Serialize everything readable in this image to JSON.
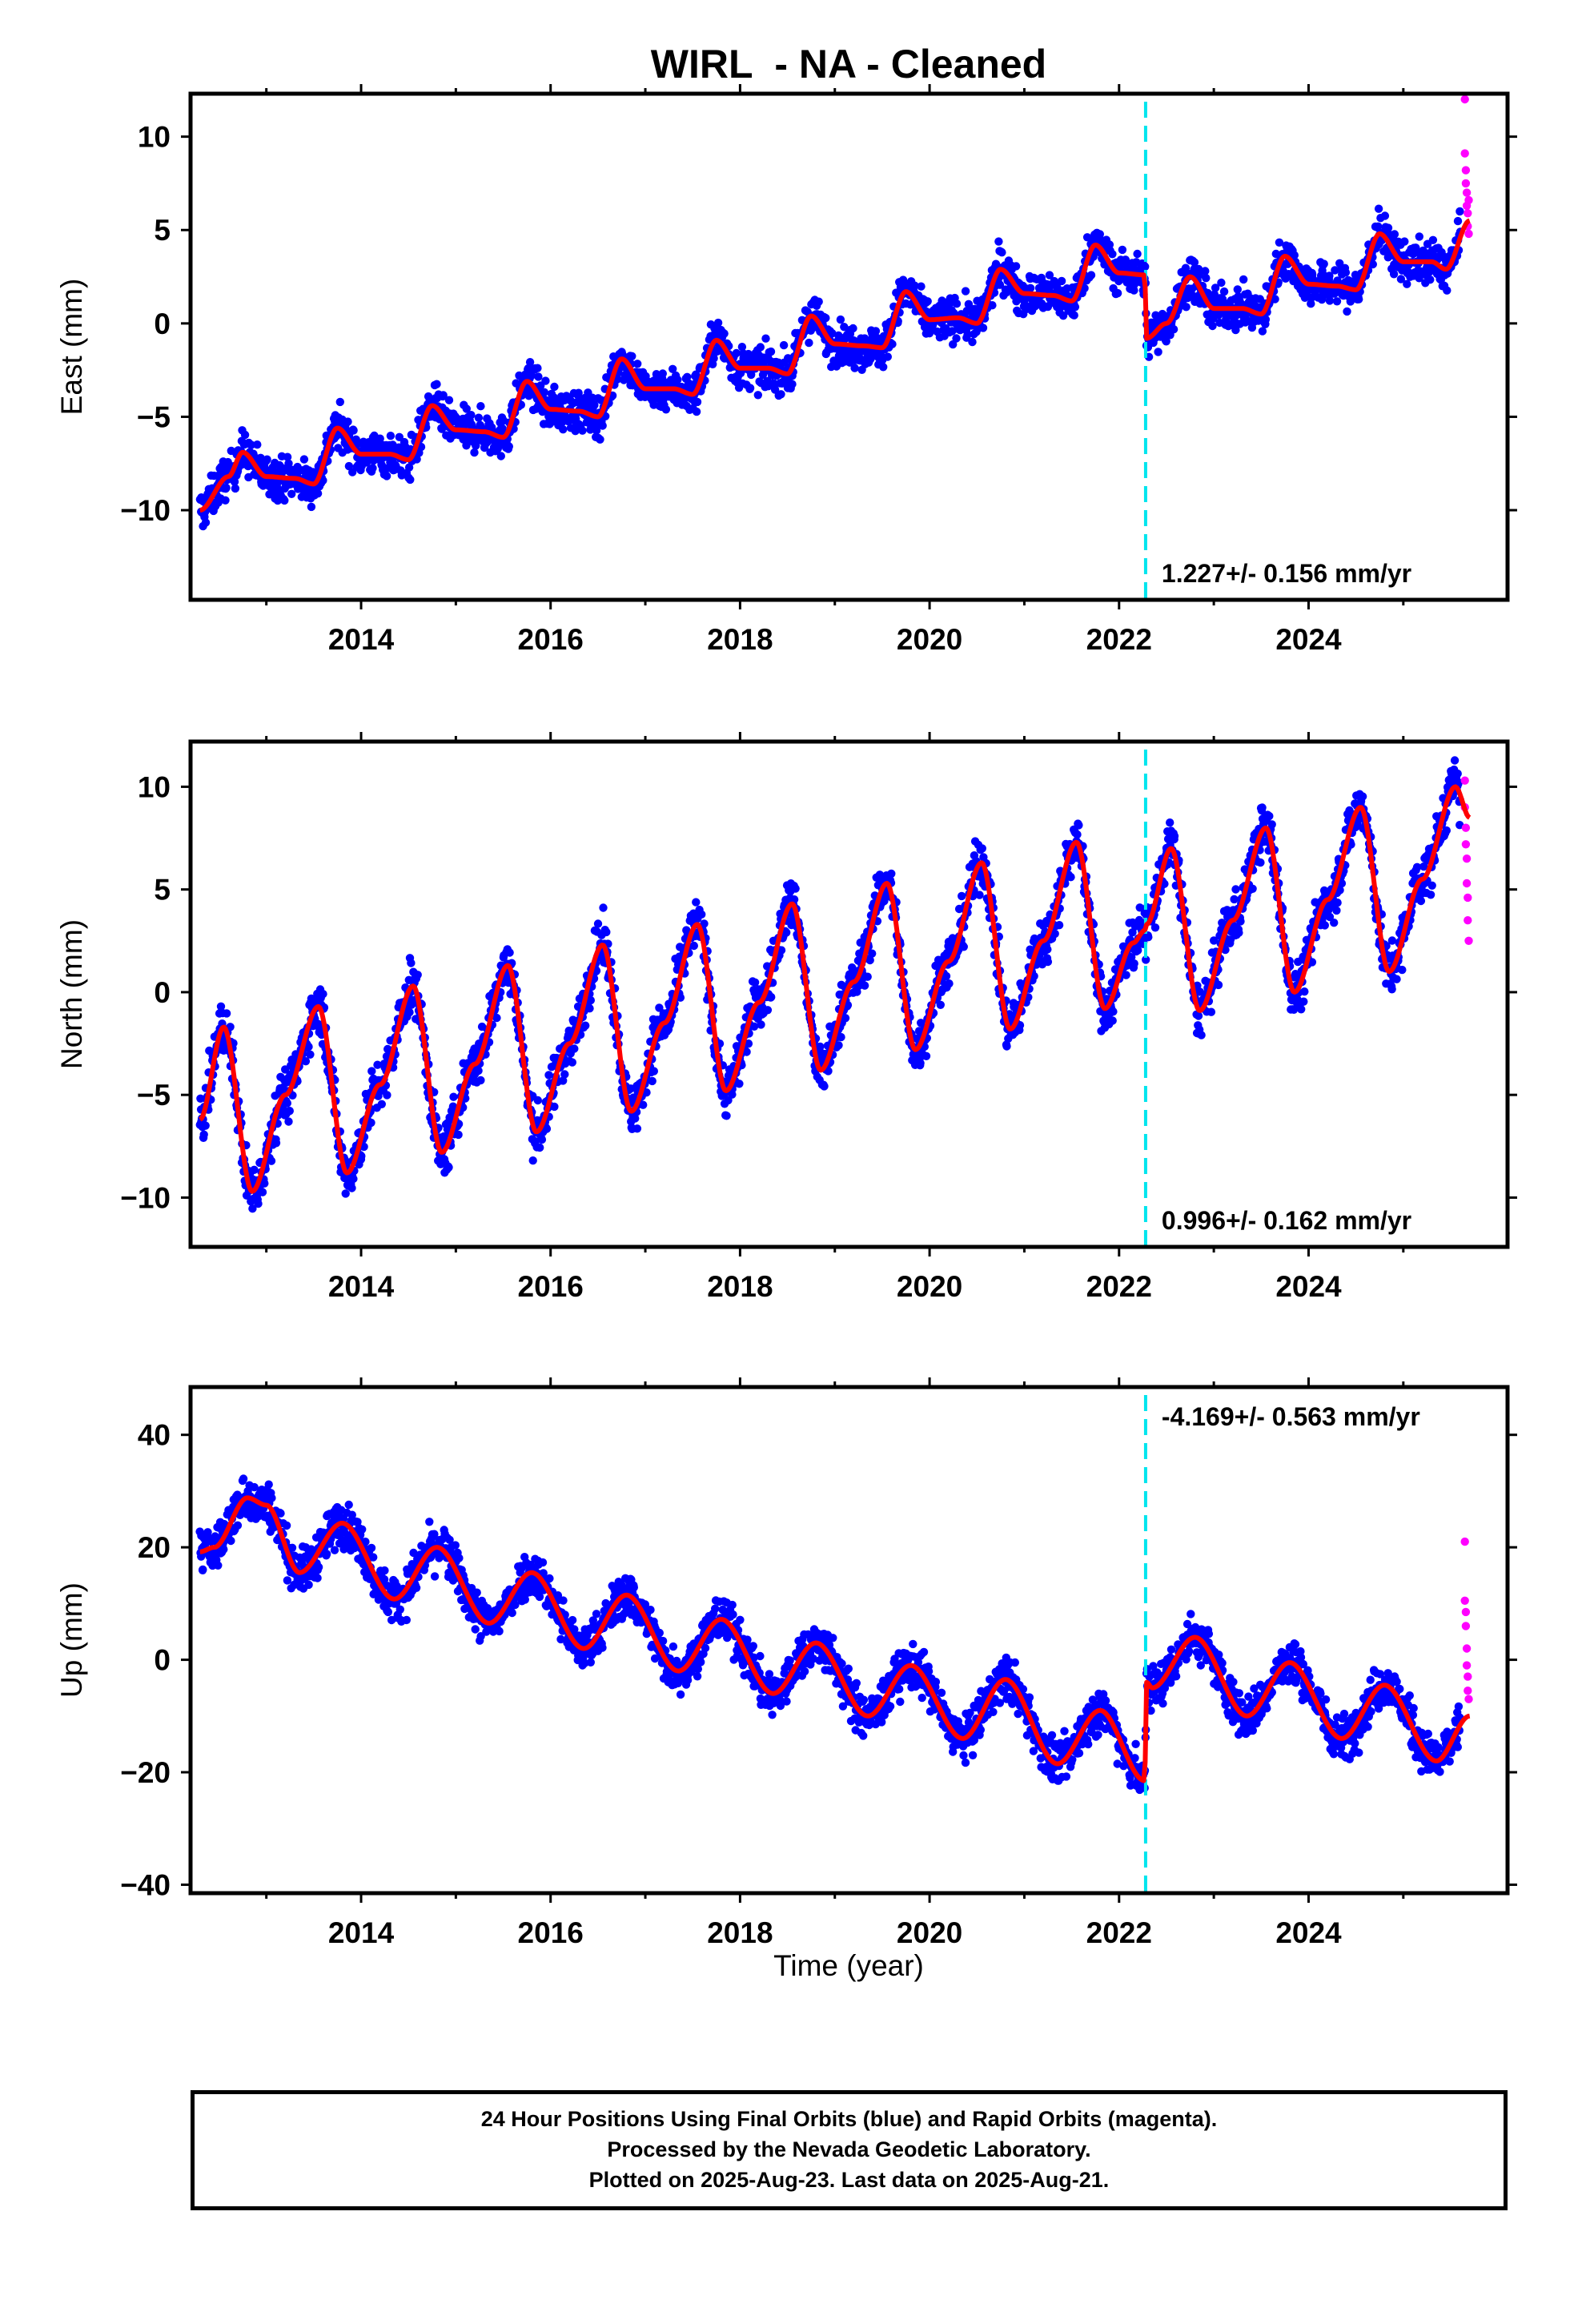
{
  "title": "WIRL  - NA - Cleaned",
  "xlabel": "Time (year)",
  "caption": {
    "line1": "24 Hour Positions Using Final Orbits (blue) and Rapid Orbits (magenta).",
    "line2": "Processed by the Nevada Geodetic Laboratory.",
    "line3": "Plotted on 2025-Aug-23. Last data on 2025-Aug-21."
  },
  "colors": {
    "final": "#0000ff",
    "rapid": "#ff00ff",
    "fit": "#ff0000",
    "break": "#00e5ee"
  },
  "chart_data": [
    {
      "type": "scatter",
      "ylabel": "East (mm)",
      "xlim": [
        2012.2,
        2026.1
      ],
      "ylim": [
        -14.8,
        12.3
      ],
      "xticks": [
        2014,
        2016,
        2018,
        2020,
        2022,
        2024
      ],
      "yticks": [
        -10,
        -5,
        0,
        5,
        10
      ],
      "equipment_change": 2022.28,
      "rate_label": "1.227+/- 0.156 mm/yr",
      "fit": [
        [
          2012.3,
          -10
        ],
        [
          2012.6,
          -8.2
        ],
        [
          2012.75,
          -6.9
        ],
        [
          2013.0,
          -8.2
        ],
        [
          2013.3,
          -8.3
        ],
        [
          2013.5,
          -8.6
        ],
        [
          2013.75,
          -5.6
        ],
        [
          2014.0,
          -7.0
        ],
        [
          2014.3,
          -7.0
        ],
        [
          2014.5,
          -7.3
        ],
        [
          2014.75,
          -4.4
        ],
        [
          2015.0,
          -5.7
        ],
        [
          2015.3,
          -5.8
        ],
        [
          2015.5,
          -6.1
        ],
        [
          2015.75,
          -3.1
        ],
        [
          2016.0,
          -4.6
        ],
        [
          2016.3,
          -4.7
        ],
        [
          2016.5,
          -5.0
        ],
        [
          2016.75,
          -1.9
        ],
        [
          2017.0,
          -3.5
        ],
        [
          2017.3,
          -3.5
        ],
        [
          2017.5,
          -3.8
        ],
        [
          2017.75,
          -0.9
        ],
        [
          2018.0,
          -2.4
        ],
        [
          2018.3,
          -2.4
        ],
        [
          2018.5,
          -2.7
        ],
        [
          2018.75,
          0.4
        ],
        [
          2019.0,
          -1.1
        ],
        [
          2019.3,
          -1.2
        ],
        [
          2019.5,
          -1.3
        ],
        [
          2019.75,
          1.7
        ],
        [
          2020.0,
          0.2
        ],
        [
          2020.3,
          0.3
        ],
        [
          2020.5,
          0
        ],
        [
          2020.75,
          2.9
        ],
        [
          2021.0,
          1.6
        ],
        [
          2021.3,
          1.5
        ],
        [
          2021.5,
          1.2
        ],
        [
          2021.75,
          4.2
        ],
        [
          2022.0,
          2.7
        ],
        [
          2022.27,
          2.6
        ],
        [
          2022.29,
          -0.8
        ],
        [
          2022.5,
          0
        ],
        [
          2022.75,
          2.5
        ],
        [
          2023.0,
          0.8
        ],
        [
          2023.3,
          0.8
        ],
        [
          2023.5,
          0.5
        ],
        [
          2023.75,
          3.6
        ],
        [
          2024.0,
          2.1
        ],
        [
          2024.3,
          2.0
        ],
        [
          2024.5,
          1.8
        ],
        [
          2024.75,
          4.8
        ],
        [
          2025.0,
          3.3
        ],
        [
          2025.3,
          3.3
        ],
        [
          2025.45,
          2.9
        ],
        [
          2025.7,
          5.5
        ]
      ],
      "points": {
        "start": 2012.3,
        "end": 2025.6,
        "count": 2600,
        "noise": 1.4,
        "rapid": [
          [
            2025.65,
            12.0
          ],
          [
            2025.65,
            9.1
          ],
          [
            2025.66,
            8.2
          ],
          [
            2025.66,
            7.5
          ],
          [
            2025.67,
            7.0
          ],
          [
            2025.67,
            6.3
          ],
          [
            2025.68,
            5.9
          ],
          [
            2025.68,
            5.2
          ],
          [
            2025.69,
            6.6
          ],
          [
            2025.69,
            4.8
          ]
        ]
      }
    },
    {
      "type": "scatter",
      "ylabel": "North (mm)",
      "xlim": [
        2012.2,
        2026.1
      ],
      "ylim": [
        -12.4,
        12.2
      ],
      "xticks": [
        2014,
        2016,
        2018,
        2020,
        2022,
        2024
      ],
      "yticks": [
        -10,
        -5,
        0,
        5,
        10
      ],
      "equipment_change": 2022.28,
      "rate_label": "0.996+/- 0.162 mm/yr",
      "fit": [
        [
          2012.3,
          -6.2
        ],
        [
          2012.55,
          -1.7
        ],
        [
          2012.85,
          -9.7
        ],
        [
          2013.2,
          -5.0
        ],
        [
          2013.55,
          -0.7
        ],
        [
          2013.85,
          -8.8
        ],
        [
          2014.2,
          -4.5
        ],
        [
          2014.55,
          0.3
        ],
        [
          2014.85,
          -7.8
        ],
        [
          2015.2,
          -3.5
        ],
        [
          2015.55,
          1.3
        ],
        [
          2015.85,
          -6.8
        ],
        [
          2016.2,
          -2.5
        ],
        [
          2016.55,
          2.3
        ],
        [
          2016.85,
          -5.8
        ],
        [
          2017.2,
          -1.5
        ],
        [
          2017.55,
          3.3
        ],
        [
          2017.85,
          -4.8
        ],
        [
          2018.2,
          -0.5
        ],
        [
          2018.55,
          4.3
        ],
        [
          2018.85,
          -3.8
        ],
        [
          2019.2,
          0.5
        ],
        [
          2019.55,
          5.3
        ],
        [
          2019.85,
          -2.8
        ],
        [
          2020.2,
          1.5
        ],
        [
          2020.55,
          6.3
        ],
        [
          2020.85,
          -1.8
        ],
        [
          2021.2,
          2.5
        ],
        [
          2021.55,
          7.3
        ],
        [
          2021.85,
          -0.8
        ],
        [
          2022.15,
          2.4
        ],
        [
          2022.27,
          3.0
        ],
        [
          2022.29,
          3.3
        ],
        [
          2022.55,
          7.0
        ],
        [
          2022.85,
          -0.9
        ],
        [
          2023.2,
          3.5
        ],
        [
          2023.55,
          8.0
        ],
        [
          2023.85,
          0
        ],
        [
          2024.2,
          4.5
        ],
        [
          2024.55,
          9.0
        ],
        [
          2024.85,
          1.0
        ],
        [
          2025.2,
          5.5
        ],
        [
          2025.55,
          10.0
        ],
        [
          2025.7,
          8.5
        ]
      ],
      "points": {
        "start": 2012.3,
        "end": 2025.6,
        "count": 2600,
        "noise": 1.6,
        "rapid": [
          [
            2025.65,
            10.3
          ],
          [
            2025.65,
            9.0
          ],
          [
            2025.66,
            8.0
          ],
          [
            2025.66,
            7.2
          ],
          [
            2025.67,
            6.5
          ],
          [
            2025.67,
            5.3
          ],
          [
            2025.68,
            4.6
          ],
          [
            2025.68,
            3.5
          ],
          [
            2025.69,
            2.5
          ]
        ]
      }
    },
    {
      "type": "scatter",
      "ylabel": "Up (mm)",
      "xlim": [
        2012.2,
        2026.1
      ],
      "ylim": [
        -41.5,
        48.5
      ],
      "xticks": [
        2014,
        2016,
        2018,
        2020,
        2022,
        2024
      ],
      "yticks": [
        -40,
        -20,
        0,
        20,
        40
      ],
      "equipment_change": 2022.28,
      "rate_label": "-4.169+/- 0.563 mm/yr",
      "fit": [
        [
          2012.3,
          19.2
        ],
        [
          2012.45,
          20
        ],
        [
          2012.8,
          28.8
        ],
        [
          2013.0,
          27.5
        ],
        [
          2013.35,
          15.5
        ],
        [
          2013.8,
          24.3
        ],
        [
          2014.35,
          10.8
        ],
        [
          2014.8,
          20.0
        ],
        [
          2015.35,
          6.5
        ],
        [
          2015.8,
          15.5
        ],
        [
          2016.35,
          2.0
        ],
        [
          2016.8,
          11.5
        ],
        [
          2017.35,
          -2.0
        ],
        [
          2017.8,
          7.2
        ],
        [
          2018.35,
          -6.0
        ],
        [
          2018.8,
          3.0
        ],
        [
          2019.35,
          -10.0
        ],
        [
          2019.8,
          -1.0
        ],
        [
          2020.35,
          -14.0
        ],
        [
          2020.8,
          -3.5
        ],
        [
          2021.35,
          -18.5
        ],
        [
          2021.8,
          -9.0
        ],
        [
          2022.27,
          -21.5
        ],
        [
          2022.29,
          -4.0
        ],
        [
          2022.35,
          -5.0
        ],
        [
          2022.8,
          4.0
        ],
        [
          2023.35,
          -10.0
        ],
        [
          2023.8,
          -0.5
        ],
        [
          2024.35,
          -14.0
        ],
        [
          2024.8,
          -4.5
        ],
        [
          2025.35,
          -18.0
        ],
        [
          2025.7,
          -10.0
        ]
      ],
      "points": {
        "start": 2012.3,
        "end": 2025.6,
        "count": 2600,
        "noise": 5.0,
        "rapid": [
          [
            2025.65,
            21.0
          ],
          [
            2025.65,
            10.5
          ],
          [
            2025.66,
            8.5
          ],
          [
            2025.66,
            6.0
          ],
          [
            2025.67,
            2.0
          ],
          [
            2025.67,
            -1.0
          ],
          [
            2025.68,
            -3.0
          ],
          [
            2025.68,
            -5.5
          ],
          [
            2025.69,
            -7.0
          ]
        ]
      }
    }
  ]
}
